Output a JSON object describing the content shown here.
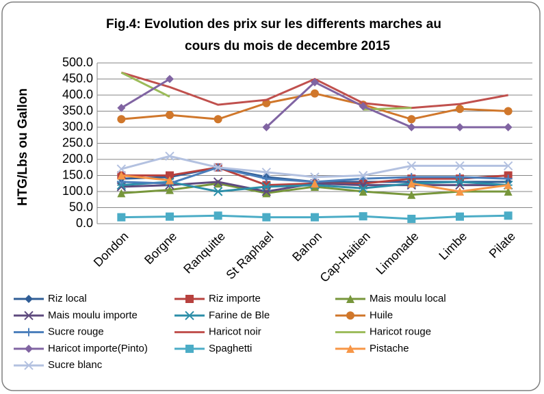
{
  "chart_data": {
    "type": "line",
    "title": [
      "Fig.4: Evolution des prix  sur les differents marches au",
      "cours du mois de decembre 2015"
    ],
    "y_label": "HTG/Lbs ou Gallon",
    "categories": [
      "Dondon",
      "Borgne",
      "Ranquitte",
      "St Raphael",
      "Bahon",
      "Cap-Haitien",
      "Limonade",
      "Limbe",
      "Pilate"
    ],
    "ylim": [
      0,
      500
    ],
    "yticks": [
      {
        "value": 0,
        "label": "0.0"
      },
      {
        "value": 50,
        "label": "50.0"
      },
      {
        "value": 100,
        "label": "100.0"
      },
      {
        "value": 150,
        "label": "150.0"
      },
      {
        "value": 200,
        "label": "200.0"
      },
      {
        "value": 250,
        "label": "250.0"
      },
      {
        "value": 300,
        "label": "300.0"
      },
      {
        "value": 350,
        "label": "350.0"
      },
      {
        "value": 400,
        "label": "400.0"
      },
      {
        "value": 450,
        "label": "450.0"
      },
      {
        "value": 500,
        "label": "500.0"
      }
    ],
    "grid": true,
    "legend": "bottom",
    "series": [
      {
        "name": "Riz local",
        "color": "#2f5d96",
        "marker": "diamond",
        "values": [
          140,
          145,
          175,
          145,
          130,
          130,
          130,
          130,
          130
        ]
      },
      {
        "name": "Riz importe",
        "color": "#b7413e",
        "marker": "square",
        "values": [
          150,
          150,
          175,
          120,
          125,
          125,
          140,
          140,
          150
        ]
      },
      {
        "name": "Mais moulu local",
        "color": "#77963b",
        "marker": "triangle",
        "values": [
          95,
          105,
          125,
          95,
          115,
          100,
          90,
          100,
          100
        ]
      },
      {
        "name": "Mais moulu importe",
        "color": "#5e4a7e",
        "marker": "x",
        "values": [
          115,
          120,
          130,
          100,
          125,
          120,
          120,
          120,
          120
        ]
      },
      {
        "name": "Farine de Ble",
        "color": "#2c8ea8",
        "marker": "star",
        "values": [
          120,
          130,
          100,
          115,
          120,
          110,
          125,
          130,
          120
        ]
      },
      {
        "name": "Huile",
        "color": "#d0772b",
        "marker": "circle",
        "values": [
          325,
          338,
          325,
          375,
          405,
          370,
          325,
          357,
          350
        ]
      },
      {
        "name": "Sucre rouge",
        "color": "#4a7ebb",
        "marker": "plus",
        "values": [
          130,
          125,
          175,
          140,
          130,
          140,
          145,
          145,
          140
        ]
      },
      {
        "name": "Haricot noir",
        "color": "#c0504d",
        "marker": "none",
        "values": [
          470,
          425,
          370,
          385,
          450,
          375,
          360,
          372,
          400
        ]
      },
      {
        "name": "Haricot rouge",
        "color": "#9bbb59",
        "marker": "none",
        "values": [
          470,
          395,
          null,
          null,
          null,
          355,
          360,
          null,
          400
        ]
      },
      {
        "name": "Haricot importe(Pinto)",
        "color": "#8064a2",
        "marker": "diamond",
        "values": [
          360,
          450,
          null,
          300,
          440,
          365,
          300,
          300,
          300
        ]
      },
      {
        "name": "Spaghetti",
        "color": "#4bacc6",
        "marker": "square",
        "values": [
          20,
          22,
          25,
          20,
          20,
          23,
          15,
          22,
          25
        ]
      },
      {
        "name": "Pistache",
        "color": "#f79646",
        "marker": "triangle",
        "values": [
          150,
          135,
          null,
          null,
          125,
          null,
          125,
          100,
          120
        ]
      },
      {
        "name": "Sucre blanc",
        "color": "#b3c1e0",
        "marker": "x",
        "values": [
          170,
          210,
          175,
          160,
          145,
          150,
          180,
          180,
          180
        ]
      }
    ]
  }
}
